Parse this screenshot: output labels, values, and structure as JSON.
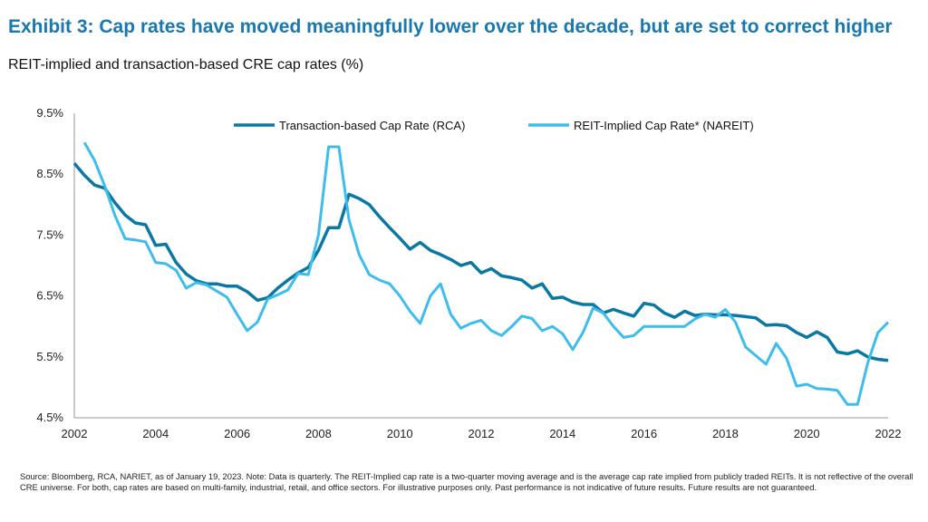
{
  "title": "Exhibit 3: Cap rates have moved meaningfully lower over the decade, but are set to correct higher",
  "subtitle": "REIT-implied and transaction-based CRE cap rates (%)",
  "source": "Source: Bloomberg, RCA, NARIET, as of January 19, 2023. Note: Data is quarterly. The REIT-Implied cap rate is a two-quarter moving average and is the average cap rate implied from publicly traded REITs. It is not reflective of the overall CRE universe. For both, cap rates are based on multi-family, industrial, retail, and office sectors. For illustrative purposes only. Past performance is not indicative of future results. Future results are not guaranteed.",
  "chart_data": {
    "type": "line",
    "xlabel": "",
    "ylabel": "",
    "xlim": [
      2002,
      2022
    ],
    "ylim": [
      4.5,
      9.5
    ],
    "x_ticks": [
      "2002",
      "2004",
      "2006",
      "2008",
      "2010",
      "2012",
      "2014",
      "2016",
      "2018",
      "2020",
      "2022"
    ],
    "y_ticks": [
      "4.5%",
      "5.5%",
      "6.5%",
      "7.5%",
      "8.5%",
      "9.5%"
    ],
    "grid": false,
    "legend_position": "top",
    "x_frequency": "quarterly",
    "series": [
      {
        "name": "Transaction-based Cap Rate (RCA)",
        "color": "#0b78a3",
        "values": [
          8.68,
          8.48,
          8.32,
          8.27,
          8.03,
          7.83,
          7.7,
          7.67,
          7.33,
          7.35,
          7.05,
          6.86,
          6.75,
          6.7,
          6.7,
          6.66,
          6.66,
          6.57,
          6.43,
          6.47,
          6.63,
          6.76,
          6.88,
          6.97,
          7.25,
          7.62,
          7.62,
          8.17,
          8.1,
          8.0,
          7.8,
          7.62,
          7.45,
          7.27,
          7.38,
          7.25,
          7.18,
          7.1,
          7.0,
          7.05,
          6.88,
          6.95,
          6.83,
          6.8,
          6.76,
          6.63,
          6.7,
          6.46,
          6.48,
          6.4,
          6.36,
          6.36,
          6.22,
          6.28,
          6.22,
          6.17,
          6.38,
          6.35,
          6.22,
          6.15,
          6.25,
          6.18,
          6.2,
          6.19,
          6.19,
          6.18,
          6.16,
          6.14,
          6.02,
          6.03,
          6.01,
          5.9,
          5.82,
          5.91,
          5.82,
          5.58,
          5.55,
          5.6,
          5.5,
          5.46,
          5.44
        ]
      },
      {
        "name": "REIT-Implied Cap Rate* (NAREIT)",
        "color": "#3dbdee",
        "values": [
          null,
          9.02,
          8.72,
          8.3,
          7.82,
          7.44,
          7.42,
          7.39,
          7.05,
          7.03,
          6.92,
          6.63,
          6.72,
          6.68,
          6.58,
          6.48,
          6.2,
          5.93,
          6.07,
          6.45,
          6.52,
          6.6,
          6.87,
          6.85,
          7.5,
          8.95,
          8.95,
          7.75,
          7.18,
          6.85,
          6.76,
          6.7,
          6.5,
          6.25,
          6.05,
          6.5,
          6.7,
          6.2,
          5.97,
          6.05,
          6.1,
          5.93,
          5.85,
          6.0,
          6.17,
          6.13,
          5.93,
          6.0,
          5.88,
          5.62,
          5.9,
          6.3,
          6.22,
          6.0,
          5.82,
          5.85,
          6.0,
          6.0,
          6.0,
          6.0,
          6.0,
          6.12,
          6.2,
          6.15,
          6.28,
          6.07,
          5.66,
          5.52,
          5.38,
          5.72,
          5.48,
          5.02,
          5.05,
          4.98,
          4.97,
          4.95,
          4.72,
          4.72,
          5.4,
          5.9,
          6.07
        ]
      }
    ]
  }
}
